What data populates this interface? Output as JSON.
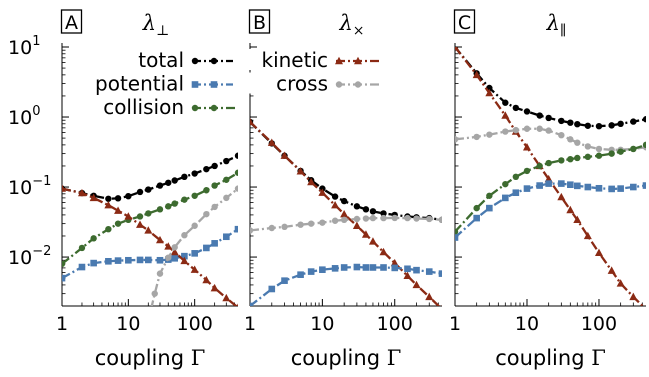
{
  "chart_data": {
    "type": "line",
    "x_scale": "log",
    "y_scale": "log",
    "xlim": [
      1,
      450
    ],
    "ylim": [
      0.002,
      10
    ],
    "x_ticks": [
      1,
      10,
      100
    ],
    "x_tick_labels": [
      "1",
      "10",
      "100"
    ],
    "y_ticks": [
      0.01,
      0.1,
      1,
      10
    ],
    "y_tick_labels": [
      {
        "base": "10",
        "exp": "−2"
      },
      {
        "base": "10",
        "exp": "−1"
      },
      {
        "base": "10",
        "exp": "0"
      },
      {
        "base": "10",
        "exp": "1"
      }
    ],
    "xlabel": "coupling",
    "xlabel_symbol": "Γ",
    "series_styles": {
      "total": {
        "color": "#000000",
        "marker": "circle",
        "dash": "dashdot"
      },
      "potential": {
        "color": "#4a7ab0",
        "marker": "square",
        "dash": "dashdot"
      },
      "collision": {
        "color": "#3d6b2f",
        "marker": "circle",
        "dash": "dashdot"
      },
      "kinetic": {
        "color": "#8b2a14",
        "marker": "triangle",
        "dash": "dashdot"
      },
      "cross": {
        "color": "#a6a6a6",
        "marker": "circle",
        "dash": "dashdot"
      }
    },
    "legends": [
      {
        "panel": 0,
        "entries": [
          {
            "name": "total",
            "key": "total"
          },
          {
            "name": "potential",
            "key": "potential"
          },
          {
            "name": "collision",
            "key": "collision"
          }
        ]
      },
      {
        "panel": 1,
        "entries": [
          {
            "name": "kinetic",
            "key": "kinetic"
          },
          {
            "name": "cross",
            "key": "cross"
          }
        ]
      }
    ],
    "panels": [
      {
        "tag": "A",
        "title_symbol": "λ",
        "title_sub": "⊥",
        "series": [
          {
            "key": "total",
            "x": [
              1,
              2,
              3,
              5,
              7,
              10,
              15,
              20,
              30,
              40,
              50,
              70,
              100,
              150,
              200,
              300,
              450
            ],
            "y": [
              0.095,
              0.082,
              0.075,
              0.068,
              0.069,
              0.074,
              0.085,
              0.092,
              0.105,
              0.115,
              0.124,
              0.14,
              0.156,
              0.18,
              0.2,
              0.235,
              0.28
            ]
          },
          {
            "key": "potential",
            "x": [
              1,
              2,
              3,
              5,
              7,
              10,
              15,
              20,
              30,
              40,
              50,
              70,
              100,
              150,
              200,
              300,
              450
            ],
            "y": [
              0.005,
              0.0072,
              0.0082,
              0.0087,
              0.0089,
              0.009,
              0.0091,
              0.0091,
              0.009,
              0.0092,
              0.0096,
              0.0103,
              0.0113,
              0.0135,
              0.0157,
              0.0195,
              0.025
            ]
          },
          {
            "key": "collision",
            "x": [
              1,
              2,
              3,
              5,
              7,
              10,
              15,
              20,
              30,
              40,
              50,
              70,
              100,
              150,
              200,
              300,
              450
            ],
            "y": [
              0.008,
              0.0135,
              0.0185,
              0.025,
              0.03,
              0.034,
              0.038,
              0.042,
              0.048,
              0.053,
              0.058,
              0.066,
              0.075,
              0.09,
              0.105,
              0.127,
              0.16
            ]
          },
          {
            "key": "kinetic",
            "x": [
              1,
              2,
              3,
              5,
              7,
              10,
              15,
              20,
              30,
              40,
              50,
              70,
              100,
              150,
              200,
              300,
              450
            ],
            "y": [
              0.095,
              0.082,
              0.07,
              0.055,
              0.046,
              0.038,
              0.029,
              0.024,
              0.0175,
              0.0142,
              0.0118,
              0.0088,
              0.0066,
              0.0047,
              0.0036,
              0.0026,
              0.0019
            ]
          },
          {
            "key": "cross",
            "x": [
              22,
              25,
              30,
              40,
              50,
              70,
              100,
              150,
              200,
              300,
              450
            ],
            "y": [
              0.0018,
              0.003,
              0.0058,
              0.0098,
              0.0138,
              0.0205,
              0.028,
              0.041,
              0.052,
              0.07,
              0.095
            ]
          }
        ]
      },
      {
        "tag": "B",
        "title_symbol": "λ",
        "title_sub": "×",
        "series": [
          {
            "key": "total",
            "x": [
              1,
              2,
              3,
              5,
              7,
              10,
              15,
              20,
              30,
              40,
              50,
              70,
              100,
              150,
              200,
              300,
              450
            ],
            "y": [
              0.85,
              0.42,
              0.28,
              0.17,
              0.125,
              0.095,
              0.073,
              0.063,
              0.053,
              0.048,
              0.045,
              0.042,
              0.04,
              0.038,
              0.037,
              0.036,
              0.034
            ]
          },
          {
            "key": "kinetic",
            "x": [
              1,
              2,
              3,
              5,
              7,
              10,
              15,
              20,
              30,
              40,
              50,
              70,
              100,
              150,
              200,
              300,
              450
            ],
            "y": [
              0.85,
              0.43,
              0.28,
              0.168,
              0.118,
              0.083,
              0.055,
              0.041,
              0.028,
              0.021,
              0.0167,
              0.0118,
              0.0082,
              0.0054,
              0.004,
              0.0027,
              0.0018
            ]
          },
          {
            "key": "cross",
            "x": [
              1,
              2,
              3,
              5,
              7,
              10,
              15,
              20,
              30,
              40,
              50,
              70,
              100,
              150,
              200,
              300,
              450
            ],
            "y": [
              0.024,
              0.026,
              0.027,
              0.029,
              0.03,
              0.031,
              0.033,
              0.034,
              0.035,
              0.0355,
              0.036,
              0.036,
              0.0362,
              0.036,
              0.0355,
              0.035,
              0.034
            ]
          },
          {
            "key": "potential",
            "x": [
              1,
              2,
              3,
              5,
              7,
              10,
              15,
              20,
              30,
              40,
              50,
              70,
              100,
              150,
              200,
              300,
              450
            ],
            "y": [
              0.002,
              0.0035,
              0.0046,
              0.0056,
              0.0062,
              0.0066,
              0.0069,
              0.0071,
              0.0072,
              0.0071,
              0.0071,
              0.0071,
              0.007,
              0.0068,
              0.0065,
              0.0062,
              0.0058
            ]
          }
        ]
      },
      {
        "tag": "C",
        "title_symbol": "λ",
        "title_sub": "∥",
        "series": [
          {
            "key": "total",
            "x": [
              1,
              2,
              3,
              5,
              7,
              10,
              15,
              20,
              30,
              40,
              50,
              70,
              100,
              150,
              200,
              300,
              450
            ],
            "y": [
              10,
              4.2,
              2.6,
              1.6,
              1.35,
              1.2,
              1.05,
              0.97,
              0.88,
              0.83,
              0.79,
              0.75,
              0.74,
              0.76,
              0.8,
              0.86,
              0.93
            ]
          },
          {
            "key": "kinetic",
            "x": [
              1,
              2,
              3,
              5,
              7,
              10,
              15,
              20,
              30,
              40,
              50,
              70,
              100,
              150,
              200,
              300,
              450
            ],
            "y": [
              10,
              4,
              2.2,
              1.05,
              0.62,
              0.37,
              0.2,
              0.13,
              0.072,
              0.047,
              0.034,
              0.02,
              0.0115,
              0.0064,
              0.0042,
              0.0027,
              0.0018
            ]
          },
          {
            "key": "cross",
            "x": [
              1,
              2,
              3,
              5,
              7,
              10,
              15,
              20,
              30,
              40,
              50,
              70,
              100,
              150,
              200,
              300,
              450
            ],
            "y": [
              0.48,
              0.52,
              0.56,
              0.62,
              0.65,
              0.68,
              0.68,
              0.64,
              0.55,
              0.48,
              0.43,
              0.38,
              0.35,
              0.34,
              0.34,
              0.35,
              0.37
            ]
          },
          {
            "key": "collision",
            "x": [
              1,
              2,
              3,
              5,
              7,
              10,
              15,
              20,
              30,
              40,
              50,
              70,
              100,
              150,
              200,
              300,
              450
            ],
            "y": [
              0.023,
              0.05,
              0.075,
              0.11,
              0.14,
              0.17,
              0.2,
              0.22,
              0.24,
              0.25,
              0.26,
              0.27,
              0.28,
              0.3,
              0.32,
              0.35,
              0.4
            ]
          },
          {
            "key": "potential",
            "x": [
              1,
              2,
              3,
              5,
              7,
              10,
              15,
              20,
              30,
              40,
              50,
              70,
              100,
              150,
              200,
              300,
              450
            ],
            "y": [
              0.019,
              0.036,
              0.05,
              0.07,
              0.083,
              0.095,
              0.105,
              0.112,
              0.112,
              0.108,
              0.104,
              0.1,
              0.096,
              0.094,
              0.095,
              0.1,
              0.105
            ]
          }
        ]
      }
    ]
  }
}
